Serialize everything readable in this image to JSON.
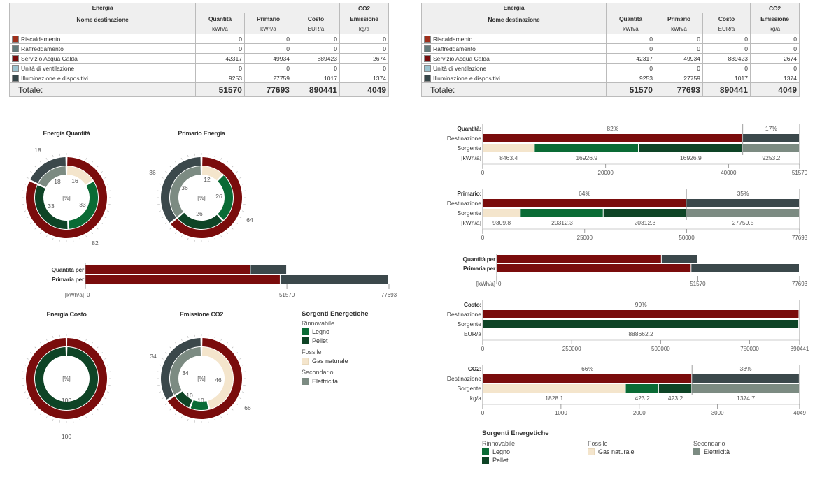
{
  "colors": {
    "riscaldamento": "#a0301c",
    "raffreddamento": "#637a7a",
    "acqua_calda": "#780c0c",
    "ventilazione": "#9cc4d0",
    "illuminazione": "#37474a",
    "destinazione": "#7a0c0c",
    "destinazione_secondary": "#3b484b",
    "legno": "#0a6b35",
    "pellet": "#0e4426",
    "gas_naturale": "#f4e5cc",
    "elettricita": "#7c8b82"
  },
  "table": {
    "group_header": "Energia",
    "co2_header": "CO2",
    "name_header": "Nome destinazione",
    "headers": [
      "Quantità",
      "Primario",
      "Costo",
      "Emissione"
    ],
    "units": [
      "kWh/a",
      "kWh/a",
      "EUR/a",
      "kg/a"
    ],
    "rows": [
      {
        "name": "Riscaldamento",
        "values": [
          "0",
          "0",
          "0",
          "0"
        ]
      },
      {
        "name": "Raffreddamento",
        "values": [
          "0",
          "0",
          "0",
          "0"
        ]
      },
      {
        "name": "Servizio Acqua Calda",
        "values": [
          "42317",
          "49934",
          "889423",
          "2674"
        ]
      },
      {
        "name": "Unità di ventilazione",
        "values": [
          "0",
          "0",
          "0",
          "0"
        ]
      },
      {
        "name": "Illuminazione e dispositivi",
        "values": [
          "9253",
          "27759",
          "1017",
          "1374"
        ]
      }
    ],
    "total_label": "Totale:",
    "totals": [
      "51570",
      "77693",
      "890441",
      "4049"
    ]
  },
  "donuts": {
    "center_label": "[%]",
    "charts": [
      {
        "title": "Energia Quantità",
        "outer": [
          82,
          18
        ],
        "inner": [
          16,
          33,
          33,
          18
        ],
        "outer_labels": [
          "82",
          "18"
        ],
        "inner_labels": [
          "16",
          "33",
          "33",
          "18"
        ]
      },
      {
        "title": "Primario Energia",
        "outer": [
          64,
          36
        ],
        "inner": [
          12,
          26,
          26,
          36
        ],
        "outer_labels": [
          "64",
          "36"
        ],
        "inner_labels": [
          "12",
          "26",
          "26",
          "36"
        ]
      },
      {
        "title": "Energia Costo",
        "outer": [
          100,
          0
        ],
        "inner": [
          0,
          0,
          100,
          0
        ],
        "outer_labels": [
          "100"
        ],
        "inner_labels": [
          "100"
        ]
      },
      {
        "title": "Emissione CO2",
        "outer": [
          66,
          34
        ],
        "inner": [
          46,
          10,
          10,
          34
        ],
        "outer_labels": [
          "66",
          "34"
        ],
        "inner_labels": [
          "46",
          "10",
          "10",
          "34"
        ]
      }
    ]
  },
  "small_bars": {
    "labels": [
      "Quantità per",
      "Primaria per"
    ],
    "unit": "[kWh/a]",
    "max": 77693,
    "rows": [
      [
        42317,
        9253
      ],
      [
        49934,
        27759
      ]
    ],
    "ticks": [
      {
        "value": 0,
        "label": "0"
      },
      {
        "value": 51570,
        "label": "51570"
      },
      {
        "value": 77693,
        "label": "77693"
      }
    ]
  },
  "legend": {
    "title": "Sorgenti Energetiche",
    "rinnovabile": "Rinnovabile",
    "fossile": "Fossile",
    "secondario": "Secondario",
    "legno": "Legno",
    "pellet": "Pellet",
    "gas": "Gas naturale",
    "elettricita": "Elettricità"
  },
  "chart_data": [
    {
      "type": "bar",
      "title": "Quantità:",
      "row_labels": [
        "Destinazione",
        "Sorgente",
        "[kWh/a]"
      ],
      "max": 51570,
      "destinazione": [
        42317,
        9253
      ],
      "pct_labels": [
        "82%",
        "17%"
      ],
      "sorgente": [
        {
          "source": "gas",
          "value": 8463.4,
          "label": "8463.4"
        },
        {
          "source": "legno",
          "value": 16926.9,
          "label": "16926.9"
        },
        {
          "source": "pellet",
          "value": 16926.9,
          "label": "16926.9"
        },
        {
          "source": "elettricita",
          "value": 9253.2,
          "label": "9253.2"
        }
      ],
      "ticks": [
        {
          "value": 0,
          "label": "0"
        },
        {
          "value": 20000,
          "label": "20000"
        },
        {
          "value": 40000,
          "label": "40000"
        },
        {
          "value": 51570,
          "label": "51570"
        }
      ]
    },
    {
      "type": "bar",
      "title": "Primario:",
      "row_labels": [
        "Destinazione",
        "Sorgente",
        "[kWh/a]"
      ],
      "max": 77693,
      "destinazione": [
        49934,
        27759
      ],
      "pct_labels": [
        "64%",
        "35%"
      ],
      "sorgente": [
        {
          "source": "gas",
          "value": 9309.8,
          "label": "9309.8"
        },
        {
          "source": "legno",
          "value": 20312.3,
          "label": "20312.3"
        },
        {
          "source": "pellet",
          "value": 20312.3,
          "label": "20312.3"
        },
        {
          "source": "elettricita",
          "value": 27759.5,
          "label": "27759.5"
        }
      ],
      "ticks": [
        {
          "value": 0,
          "label": "0"
        },
        {
          "value": 25000,
          "label": "25000"
        },
        {
          "value": 50000,
          "label": "50000"
        },
        {
          "value": 77693,
          "label": "77693"
        }
      ]
    },
    {
      "type": "bar",
      "title": "",
      "row_labels": [
        "Quantità per",
        "Primaria per",
        "[kWh/a]"
      ],
      "max": 77693,
      "rows": [
        [
          42317,
          9253
        ],
        [
          49934,
          27759
        ]
      ],
      "ticks": [
        {
          "value": 0,
          "label": "0"
        },
        {
          "value": 51570,
          "label": "51570"
        },
        {
          "value": 77693,
          "label": "77693"
        }
      ]
    },
    {
      "type": "bar",
      "title": "Costo:",
      "row_labels": [
        "Destinazione",
        "Sorgente",
        "EUR/a"
      ],
      "max": 890441,
      "destinazione": [
        889423,
        1017
      ],
      "pct_labels": [
        "99%"
      ],
      "sorgente": [
        {
          "source": "pellet",
          "value": 888662.2,
          "label": "888662.2"
        },
        {
          "source": "elettricita",
          "value": 1778.8,
          "label": ""
        }
      ],
      "ticks": [
        {
          "value": 0,
          "label": "0"
        },
        {
          "value": 250000,
          "label": "250000"
        },
        {
          "value": 500000,
          "label": "500000"
        },
        {
          "value": 750000,
          "label": "750000"
        },
        {
          "value": 890441,
          "label": "890441"
        }
      ]
    },
    {
      "type": "bar",
      "title": "CO2:",
      "row_labels": [
        "Destinazione",
        "Sorgente",
        "kg/a"
      ],
      "max": 4049,
      "destinazione": [
        2674,
        1374
      ],
      "pct_labels": [
        "66%",
        "33%"
      ],
      "sorgente": [
        {
          "source": "gas",
          "value": 1828.1,
          "label": "1828.1"
        },
        {
          "source": "legno",
          "value": 423.2,
          "label": "423.2"
        },
        {
          "source": "pellet",
          "value": 423.2,
          "label": "423.2"
        },
        {
          "source": "elettricita",
          "value": 1374.7,
          "label": "1374.7"
        }
      ],
      "ticks": [
        {
          "value": 0,
          "label": "0"
        },
        {
          "value": 1000,
          "label": "1000"
        },
        {
          "value": 2000,
          "label": "2000"
        },
        {
          "value": 3000,
          "label": "3000"
        },
        {
          "value": 4049,
          "label": "4049"
        }
      ]
    }
  ]
}
